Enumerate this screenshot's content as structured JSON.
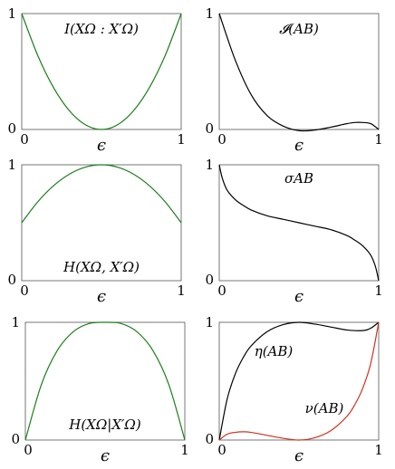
{
  "colors": {
    "green": "#1a7f1a",
    "black": "#000000",
    "red": "#d0321e"
  },
  "chart_data": [
    {
      "type": "line",
      "xlabel": "ϵ",
      "xlim": [
        0,
        1
      ],
      "ylim": [
        0,
        1
      ],
      "x_ticks": [
        "0",
        "1"
      ],
      "y_ticks": [
        "0",
        "1"
      ],
      "annotation": "I(XΩ : X′Ω)",
      "series": [
        {
          "color": "green",
          "x": [
            0,
            0.1,
            0.2,
            0.3,
            0.4,
            0.5,
            0.6,
            0.7,
            0.8,
            0.9,
            1
          ],
          "y": [
            1,
            0.64,
            0.36,
            0.16,
            0.04,
            0,
            0.04,
            0.16,
            0.36,
            0.64,
            1
          ]
        }
      ]
    },
    {
      "type": "line",
      "xlabel": "ϵ",
      "xlim": [
        0,
        1
      ],
      "ylim": [
        0,
        1
      ],
      "x_ticks": [
        "0",
        "1"
      ],
      "y_ticks": [
        "0",
        "1"
      ],
      "annotation": "𝓘(AB)",
      "series": [
        {
          "color": "black",
          "x": [
            0,
            0.1,
            0.2,
            0.3,
            0.4,
            0.5,
            0.6,
            0.7,
            0.8,
            0.85,
            0.9,
            0.95,
            1
          ],
          "y": [
            1,
            0.6,
            0.3,
            0.12,
            0.03,
            -0.01,
            -0.005,
            0.02,
            0.05,
            0.06,
            0.06,
            0.05,
            0
          ]
        }
      ]
    },
    {
      "type": "line",
      "xlabel": "ϵ",
      "xlim": [
        0,
        1
      ],
      "ylim": [
        0,
        1
      ],
      "x_ticks": [
        "0",
        "1"
      ],
      "y_ticks": [
        "0",
        "1"
      ],
      "annotation": "H(XΩ, X′Ω)",
      "series": [
        {
          "color": "green",
          "x": [
            0,
            0.1,
            0.2,
            0.3,
            0.4,
            0.5,
            0.6,
            0.7,
            0.8,
            0.9,
            1
          ],
          "y": [
            0.5,
            0.68,
            0.82,
            0.92,
            0.98,
            1,
            0.98,
            0.92,
            0.82,
            0.68,
            0.5
          ]
        }
      ]
    },
    {
      "type": "line",
      "xlabel": "ϵ",
      "xlim": [
        0,
        1
      ],
      "ylim": [
        0,
        1
      ],
      "x_ticks": [
        "0",
        "1"
      ],
      "y_ticks": [
        "0",
        "1"
      ],
      "annotation": "σAB",
      "series": [
        {
          "color": "black",
          "x": [
            0,
            0.02,
            0.05,
            0.1,
            0.15,
            0.2,
            0.3,
            0.4,
            0.5,
            0.6,
            0.7,
            0.8,
            0.85,
            0.9,
            0.95,
            0.98,
            1
          ],
          "y": [
            1,
            0.88,
            0.78,
            0.7,
            0.65,
            0.61,
            0.56,
            0.53,
            0.5,
            0.47,
            0.44,
            0.39,
            0.35,
            0.3,
            0.22,
            0.12,
            0
          ]
        }
      ]
    },
    {
      "type": "line",
      "xlabel": "ϵ",
      "xlim": [
        0,
        1
      ],
      "ylim": [
        0,
        1
      ],
      "x_ticks": [
        "0",
        "1"
      ],
      "y_ticks": [
        "0",
        "1"
      ],
      "annotation": "H(XΩ|X′Ω)",
      "series": [
        {
          "color": "green",
          "x": [
            0,
            0.1,
            0.2,
            0.3,
            0.4,
            0.5,
            0.6,
            0.7,
            0.8,
            0.9,
            1
          ],
          "y": [
            0,
            0.47,
            0.76,
            0.92,
            0.99,
            1,
            0.99,
            0.92,
            0.76,
            0.47,
            0
          ]
        }
      ]
    },
    {
      "type": "line",
      "xlabel": "ϵ",
      "xlim": [
        0,
        1
      ],
      "ylim": [
        0,
        1
      ],
      "x_ticks": [
        "0",
        "1"
      ],
      "y_ticks": [
        "0",
        "1"
      ],
      "annotations": [
        "η(AB)",
        "ν(AB)"
      ],
      "series": [
        {
          "color": "black",
          "x": [
            0,
            0.05,
            0.1,
            0.15,
            0.2,
            0.3,
            0.4,
            0.5,
            0.6,
            0.7,
            0.8,
            0.9,
            0.95,
            1
          ],
          "y": [
            0,
            0.35,
            0.56,
            0.7,
            0.8,
            0.92,
            0.98,
            1.0,
            0.985,
            0.96,
            0.935,
            0.93,
            0.95,
            1
          ]
        },
        {
          "color": "red",
          "x": [
            0,
            0.05,
            0.1,
            0.15,
            0.2,
            0.3,
            0.4,
            0.5,
            0.6,
            0.7,
            0.8,
            0.85,
            0.9,
            0.95,
            1
          ],
          "y": [
            0,
            0.05,
            0.065,
            0.07,
            0.065,
            0.04,
            0.015,
            0,
            0.02,
            0.08,
            0.2,
            0.3,
            0.44,
            0.65,
            1
          ]
        }
      ]
    }
  ]
}
